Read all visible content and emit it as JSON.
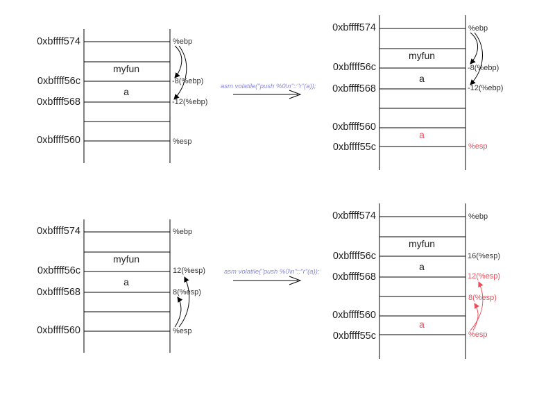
{
  "colors": {
    "text": "#222222",
    "highlight": "#e8505b",
    "asm_text": "#8888dd",
    "line": "#000000"
  },
  "panels": {
    "top_left": {
      "addresses": [
        "0xbffff574",
        "0xbffff56c",
        "0xbffff568",
        "0xbffff560"
      ],
      "cells": [
        "myfun",
        "a"
      ],
      "labels": [
        "%ebp",
        "-8(%ebp)",
        "-12(%ebp)",
        "%esp"
      ]
    },
    "top_right": {
      "addresses": [
        "0xbffff574",
        "0xbffff56c",
        "0xbffff568",
        "0xbffff560",
        "0xbffff55c"
      ],
      "cells": [
        "myfun",
        "a",
        "a"
      ],
      "labels": [
        "%ebp",
        "-8(%ebp)",
        "-12(%ebp)",
        "%esp"
      ]
    },
    "bottom_left": {
      "addresses": [
        "0xbffff574",
        "0xbffff56c",
        "0xbffff568",
        "0xbffff560"
      ],
      "cells": [
        "myfun",
        "a"
      ],
      "labels": [
        "%ebp",
        "12(%esp)",
        "8(%esp)",
        "%esp"
      ]
    },
    "bottom_right": {
      "addresses": [
        "0xbffff574",
        "0xbffff56c",
        "0xbffff568",
        "0xbffff560",
        "0xbffff55c"
      ],
      "cells": [
        "myfun",
        "a",
        "a"
      ],
      "labels": [
        "%ebp",
        "16(%esp)",
        "12(%esp)",
        "8(%esp)",
        "%esp"
      ]
    }
  },
  "transitions": {
    "top": "asm volatile(\"push %0\\n\"::\"r\"(a));",
    "bottom": "asm volatile(\"push %0\\n\"::\"r\"(a));"
  }
}
